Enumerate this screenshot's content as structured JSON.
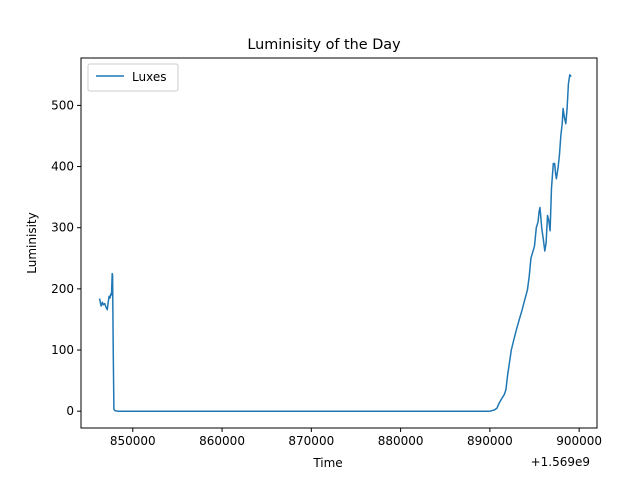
{
  "chart_data": {
    "type": "line",
    "title": "Luminisity of the Day",
    "xlabel": "Time",
    "ylabel": "Luminisity",
    "x_offset_label": "+1.569e9",
    "xlim": [
      844200,
      902000
    ],
    "ylim": [
      -27.5,
      577.5
    ],
    "x_ticks": [
      850000,
      860000,
      870000,
      880000,
      890000,
      900000
    ],
    "x_tick_labels": [
      "850000",
      "860000",
      "870000",
      "880000",
      "890000",
      "900000"
    ],
    "y_ticks": [
      0,
      100,
      200,
      300,
      400,
      500
    ],
    "y_tick_labels": [
      "0",
      "100",
      "200",
      "300",
      "400",
      "500"
    ],
    "grid": false,
    "legend": {
      "placement": "top-left",
      "entries": [
        "Luxes"
      ]
    },
    "series": [
      {
        "name": "Luxes",
        "color": "#1f77b4",
        "points": [
          [
            846300,
            183
          ],
          [
            846450,
            172
          ],
          [
            846600,
            178
          ],
          [
            846700,
            174
          ],
          [
            846850,
            176
          ],
          [
            847000,
            170
          ],
          [
            847150,
            166
          ],
          [
            847250,
            178
          ],
          [
            847350,
            188
          ],
          [
            847450,
            185
          ],
          [
            847550,
            192
          ],
          [
            847620,
            190
          ],
          [
            847700,
            225
          ],
          [
            847740,
            222
          ],
          [
            847800,
            120
          ],
          [
            847880,
            3
          ],
          [
            848000,
            1
          ],
          [
            848300,
            0
          ],
          [
            890000,
            0
          ],
          [
            890500,
            2
          ],
          [
            890800,
            5
          ],
          [
            891000,
            12
          ],
          [
            891300,
            20
          ],
          [
            891600,
            27
          ],
          [
            891800,
            35
          ],
          [
            892000,
            60
          ],
          [
            892200,
            80
          ],
          [
            892400,
            100
          ],
          [
            892700,
            118
          ],
          [
            893000,
            135
          ],
          [
            893300,
            150
          ],
          [
            893600,
            165
          ],
          [
            893900,
            182
          ],
          [
            894200,
            198
          ],
          [
            894400,
            220
          ],
          [
            894600,
            250
          ],
          [
            894800,
            260
          ],
          [
            895000,
            270
          ],
          [
            895200,
            300
          ],
          [
            895400,
            310
          ],
          [
            895500,
            325
          ],
          [
            895600,
            333
          ],
          [
            895700,
            318
          ],
          [
            895800,
            300
          ],
          [
            896000,
            280
          ],
          [
            896150,
            262
          ],
          [
            896300,
            275
          ],
          [
            896450,
            320
          ],
          [
            896600,
            312
          ],
          [
            896750,
            295
          ],
          [
            896900,
            365
          ],
          [
            897100,
            405
          ],
          [
            897250,
            405
          ],
          [
            897350,
            390
          ],
          [
            897450,
            380
          ],
          [
            897650,
            400
          ],
          [
            897800,
            420
          ],
          [
            897950,
            450
          ],
          [
            898100,
            470
          ],
          [
            898200,
            495
          ],
          [
            898350,
            480
          ],
          [
            898500,
            470
          ],
          [
            898650,
            495
          ],
          [
            898800,
            535
          ],
          [
            898950,
            550
          ],
          [
            899050,
            548
          ]
        ]
      }
    ]
  }
}
